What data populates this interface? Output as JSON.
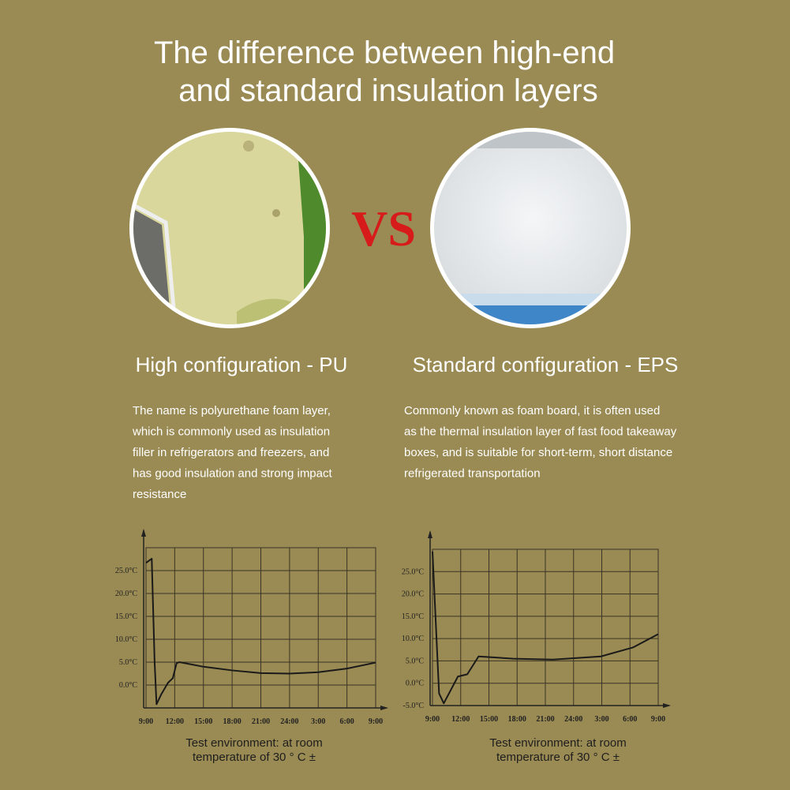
{
  "title": [
    "The difference between high-end",
    "and standard insulation layers"
  ],
  "vs": "VS",
  "panels": [
    {
      "heading": "High configuration - PU",
      "description": [
        "The name is polyurethane foam layer,",
        "which is commonly used as insulation",
        "filler in refrigerators and freezers, and",
        "has good insulation and strong impact",
        "resistance"
      ]
    },
    {
      "heading": "Standard configuration - EPS",
      "description": [
        "Commonly known as foam board, it is often used",
        "as the thermal insulation layer of fast food takeaway",
        "boxes, and is suitable for short-term, short distance",
        "refrigerated transportation"
      ]
    }
  ],
  "chart_data": [
    {
      "type": "line",
      "grid": true,
      "xlim": [
        0,
        24
      ],
      "xticks": [
        {
          "value": 0,
          "label": "9:00"
        },
        {
          "value": 3,
          "label": "12:00"
        },
        {
          "value": 6,
          "label": "15:00"
        },
        {
          "value": 9,
          "label": "18:00"
        },
        {
          "value": 12,
          "label": "21:00"
        },
        {
          "value": 15,
          "label": "24:00"
        },
        {
          "value": 18,
          "label": "3:00"
        },
        {
          "value": 21,
          "label": "6:00"
        },
        {
          "value": 24,
          "label": "9:00"
        }
      ],
      "ylim": [
        -5,
        30
      ],
      "yticks": [
        {
          "value": 25,
          "label": "25.0°C"
        },
        {
          "value": 20,
          "label": "20.0°C"
        },
        {
          "value": 15,
          "label": "15.0°C"
        },
        {
          "value": 10,
          "label": "10.0°C"
        },
        {
          "value": 5,
          "label": "5.0°C"
        },
        {
          "value": 0,
          "label": "0.0°C"
        }
      ],
      "series": [
        {
          "color": "#1a1a1a",
          "x": [
            0,
            0.6,
            0.7,
            0.9,
            1.1,
            1.6,
            2.3,
            2.8,
            3.2,
            3.5,
            6,
            9,
            12,
            15,
            18,
            21,
            24
          ],
          "values": [
            26.7,
            27.6,
            20,
            5,
            -4.2,
            -2,
            0.5,
            1.5,
            4.8,
            5,
            4,
            3.2,
            2.6,
            2.5,
            2.8,
            3.6,
            4.9
          ]
        }
      ],
      "caption": [
        "Test environment: at room",
        "temperature of 30 ° C ±"
      ]
    },
    {
      "type": "line",
      "grid": true,
      "xlim": [
        0,
        24
      ],
      "xticks": [
        {
          "value": 0,
          "label": "9:00"
        },
        {
          "value": 3,
          "label": "12:00"
        },
        {
          "value": 6,
          "label": "15:00"
        },
        {
          "value": 9,
          "label": "18:00"
        },
        {
          "value": 12,
          "label": "21:00"
        },
        {
          "value": 15,
          "label": "24:00"
        },
        {
          "value": 18,
          "label": "3:00"
        },
        {
          "value": 21,
          "label": "6:00"
        },
        {
          "value": 24,
          "label": "9:00"
        }
      ],
      "ylim": [
        -5,
        30
      ],
      "yticks": [
        {
          "value": 25,
          "label": "25.0°C"
        },
        {
          "value": 20,
          "label": "20.0°C"
        },
        {
          "value": 15,
          "label": "15.0°C"
        },
        {
          "value": 10,
          "label": "10.0°C"
        },
        {
          "value": 5,
          "label": "5.0°C"
        },
        {
          "value": 0,
          "label": "0.0°C"
        },
        {
          "value": -5,
          "label": "-5.0°C"
        }
      ],
      "series": [
        {
          "color": "#1a1a1a",
          "x": [
            0,
            0.7,
            1.2,
            2.7,
            3.7,
            4.9,
            8.6,
            12.8,
            17.9,
            21.3,
            24
          ],
          "values": [
            29.5,
            -2.3,
            -4.5,
            1.5,
            2,
            6,
            5.5,
            5.3,
            6,
            8,
            11
          ]
        }
      ],
      "caption": [
        "Test environment: at room",
        "temperature of 30 ° C ±"
      ]
    }
  ]
}
